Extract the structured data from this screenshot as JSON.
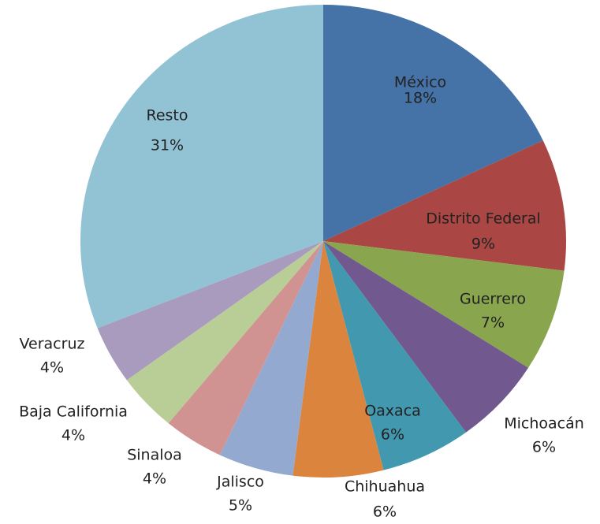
{
  "chart_data": {
    "type": "pie",
    "categories": [
      "México",
      "Distrito Federal",
      "Guerrero",
      "Michoacán",
      "Oaxaca",
      "Chihuahua",
      "Jalisco",
      "Sinaloa",
      "Baja California",
      "Veracruz",
      "Resto"
    ],
    "values": [
      18,
      9,
      7,
      6,
      6,
      6,
      5,
      4,
      4,
      4,
      31
    ],
    "value_labels": [
      "18%",
      "9%",
      "7%",
      "6%",
      "6%",
      "6%",
      "5%",
      "4%",
      "4%",
      "4%",
      "31%"
    ],
    "colors": [
      "#4572a7",
      "#aa4643",
      "#89a54e",
      "#71588f",
      "#4198af",
      "#db843d",
      "#93a9cf",
      "#d19392",
      "#b9cd96",
      "#a99bbd",
      "#92c3d5"
    ]
  }
}
